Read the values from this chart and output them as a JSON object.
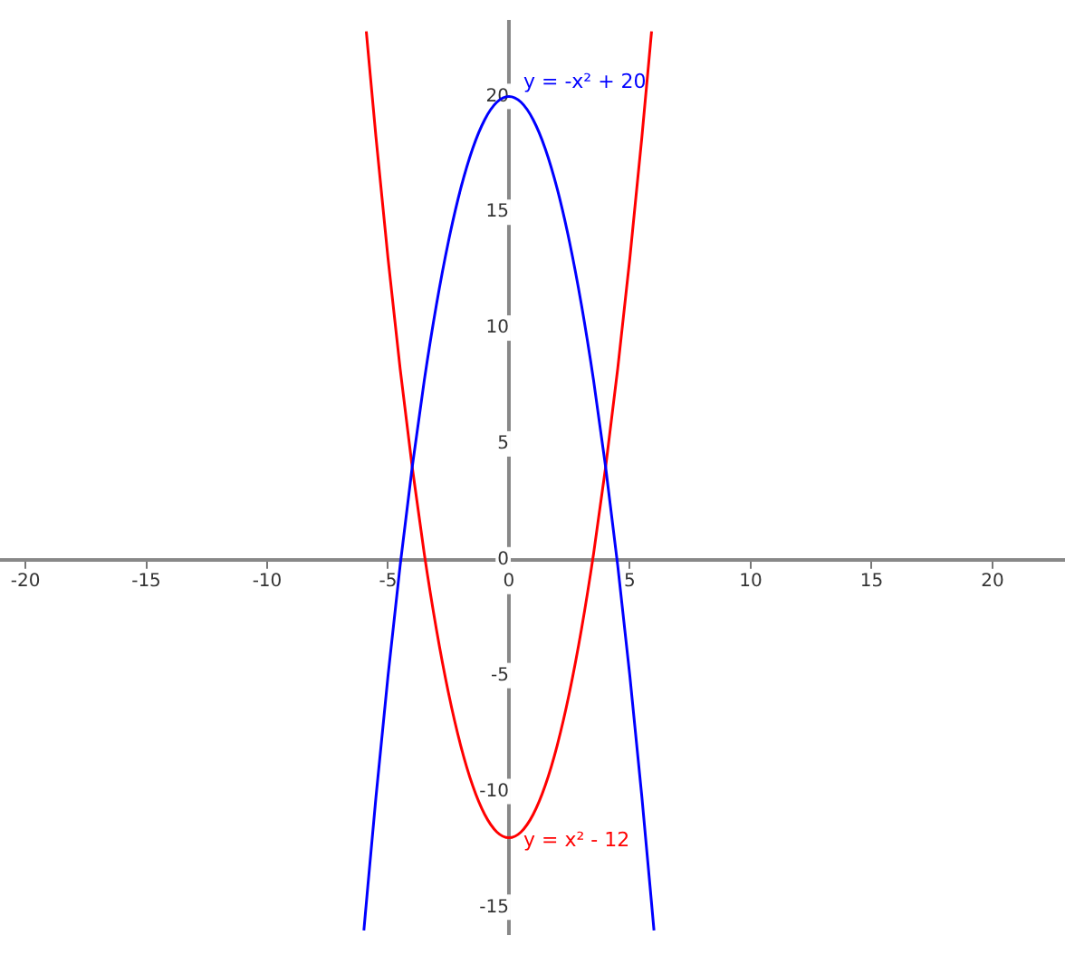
{
  "chart_data": {
    "type": "line",
    "xlim": [
      -21.05,
      23.0
    ],
    "ylim": [
      -16.2,
      23.3
    ],
    "xticks": [
      -20,
      -15,
      -10,
      -5,
      0,
      5,
      10,
      15,
      20
    ],
    "yticks": [
      -15,
      -10,
      -5,
      0,
      5,
      10,
      15,
      20
    ],
    "grid": false,
    "legend": false,
    "marker": "none",
    "line_style": "solid",
    "series": [
      {
        "name": "y = -x² + 20",
        "color": "#0000ff",
        "x": [
          -6,
          -5.5,
          -5,
          -4.5,
          -4,
          -3.5,
          -3,
          -2.5,
          -2,
          -1.5,
          -1,
          -0.5,
          0,
          0.5,
          1,
          1.5,
          2,
          2.5,
          3,
          3.5,
          4,
          4.5,
          5,
          5.5,
          6
        ],
        "values": [
          -16,
          -10.25,
          -5,
          -0.25,
          4,
          7.75,
          11,
          13.75,
          16,
          17.75,
          19,
          19.75,
          20,
          19.75,
          19,
          17.75,
          16,
          13.75,
          11,
          7.75,
          4,
          -0.25,
          -5,
          -10.25,
          -16
        ]
      },
      {
        "name": "y = x² - 12",
        "color": "#ff0000",
        "x": [
          -5.9,
          -5.5,
          -5,
          -4.5,
          -4,
          -3.5,
          -3,
          -2.5,
          -2,
          -1.5,
          -1,
          -0.5,
          0,
          0.5,
          1,
          1.5,
          2,
          2.5,
          3,
          3.5,
          4,
          4.5,
          5,
          5.5,
          5.9
        ],
        "values": [
          22.81,
          18.25,
          13,
          8.25,
          4,
          0.25,
          -3,
          -5.75,
          -8,
          -9.75,
          -11,
          -11.75,
          -12,
          -11.75,
          -11,
          -9.75,
          -8,
          -5.75,
          -3,
          0.25,
          4,
          8.25,
          13,
          18.25,
          22.81
        ]
      }
    ]
  }
}
